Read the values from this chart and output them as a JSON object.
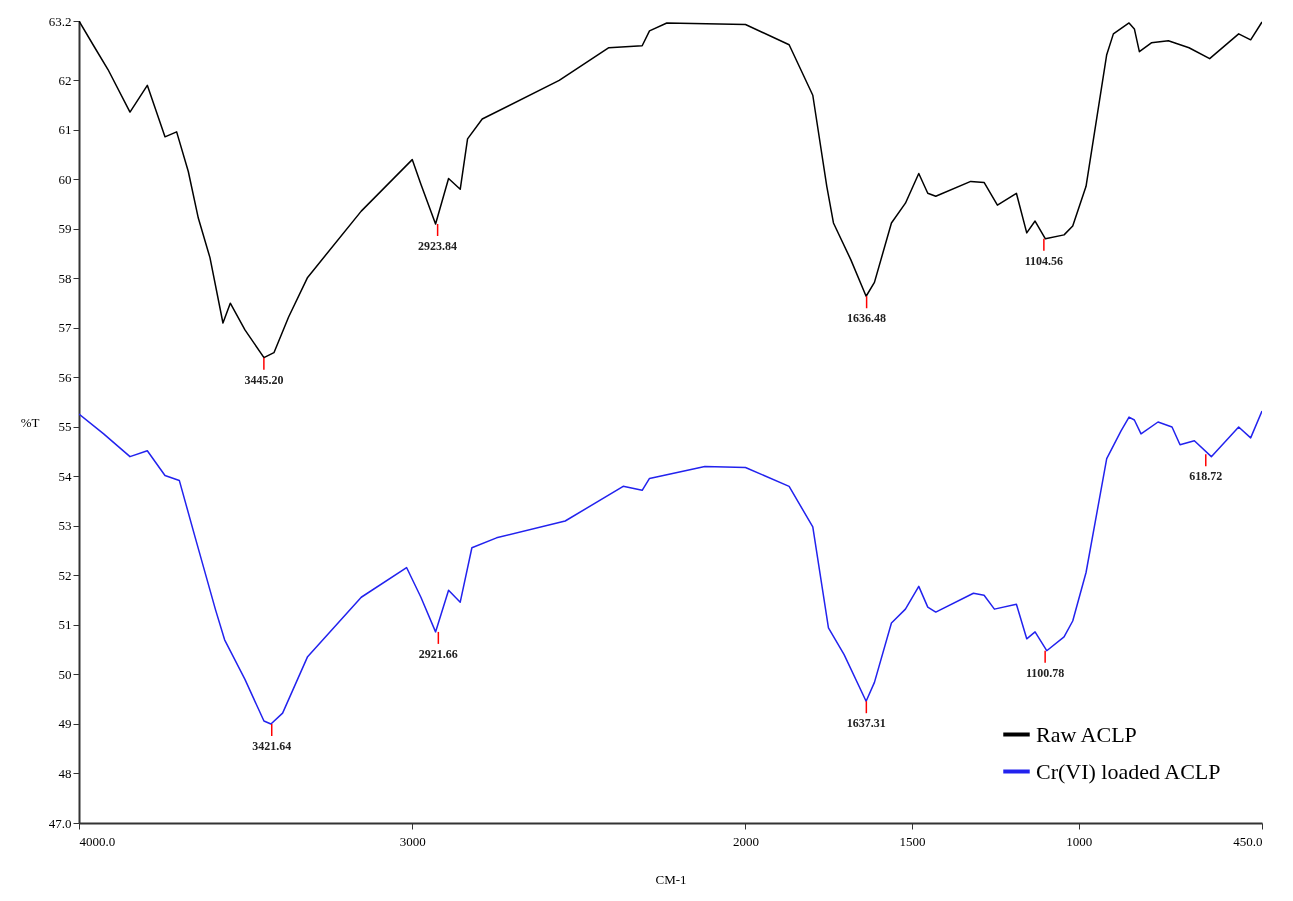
{
  "chart_data": {
    "type": "line",
    "xlabel": "CM-1",
    "ylabel": "%T",
    "xlim": [
      4000,
      450
    ],
    "xticks": [
      {
        "value": 4000,
        "label": "4000.0"
      },
      3000,
      2000,
      1500,
      1000,
      {
        "value": 450,
        "label": "450.0"
      }
    ],
    "ylim": [
      47,
      63.2
    ],
    "yticks": [
      {
        "value": 47,
        "label": "47.0"
      },
      48,
      49,
      50,
      51,
      52,
      53,
      54,
      55,
      56,
      57,
      58,
      59,
      60,
      61,
      62,
      63.2
    ],
    "legend": "bottom right",
    "grid": false,
    "line_style": "solid",
    "marker": "none",
    "series": [
      {
        "name": "Raw ACLP",
        "color": "#000000",
        "x": [
          4000,
          3956,
          3913,
          3847,
          3795,
          3742,
          3707,
          3672,
          3642,
          3607,
          3568,
          3546,
          3502,
          3445,
          3415,
          3371,
          3314,
          3153,
          3000,
          2974,
          2930,
          2891,
          2856,
          2834,
          2790,
          2559,
          2410,
          2310,
          2288,
          2236,
          2000,
          1869,
          1798,
          1756,
          1736,
          1684,
          1638,
          1613,
          1562,
          1520,
          1480,
          1453,
          1429,
          1324,
          1284,
          1244,
          1187,
          1156,
          1131,
          1100,
          1044,
          1018,
          978,
          916,
          896,
          849,
          833,
          818,
          782,
          731,
          669,
          607,
          520,
          484,
          450
        ],
        "values": [
          63.2,
          62.7,
          62.22,
          61.36,
          61.9,
          60.86,
          60.96,
          60.16,
          59.22,
          58.42,
          57.1,
          57.5,
          56.96,
          56.4,
          56.5,
          57.22,
          58.02,
          59.36,
          60.4,
          59.9,
          59.1,
          60.02,
          59.8,
          60.82,
          61.22,
          62.0,
          62.66,
          62.7,
          63.0,
          63.16,
          63.13,
          62.72,
          61.7,
          59.86,
          59.12,
          58.38,
          57.64,
          57.92,
          59.12,
          59.52,
          60.12,
          59.72,
          59.66,
          59.96,
          59.94,
          59.48,
          59.72,
          58.92,
          59.16,
          58.8,
          58.88,
          59.06,
          59.86,
          62.52,
          62.94,
          63.16,
          63.04,
          62.58,
          62.76,
          62.8,
          62.66,
          62.44,
          62.94,
          62.82,
          63.18
        ]
      },
      {
        "name": "Cr(VI) loaded ACLP",
        "color": "#2222ee",
        "x": [
          4000,
          3926,
          3847,
          3795,
          3742,
          3699,
          3651,
          3590,
          3563,
          3502,
          3445,
          3424,
          3389,
          3314,
          3153,
          3017,
          2974,
          2930,
          2891,
          2856,
          2821,
          2747,
          2541,
          2367,
          2310,
          2288,
          2122,
          2000,
          1869,
          1798,
          1751,
          1704,
          1638,
          1613,
          1562,
          1520,
          1480,
          1453,
          1429,
          1316,
          1284,
          1253,
          1187,
          1156,
          1131,
          1096,
          1044,
          1018,
          978,
          916,
          873,
          849,
          833,
          813,
          762,
          720,
          696,
          653,
          602,
          520,
          484,
          450
        ],
        "values": [
          55.26,
          54.86,
          54.4,
          54.52,
          54.02,
          53.92,
          52.76,
          51.3,
          50.7,
          49.9,
          49.06,
          49.0,
          49.22,
          50.36,
          51.56,
          52.16,
          51.56,
          50.86,
          51.7,
          51.46,
          52.56,
          52.76,
          53.1,
          53.8,
          53.72,
          53.96,
          54.2,
          54.18,
          53.8,
          52.98,
          50.94,
          50.4,
          49.46,
          49.84,
          51.04,
          51.32,
          51.78,
          51.36,
          51.26,
          51.64,
          51.6,
          51.32,
          51.42,
          50.72,
          50.86,
          50.48,
          50.76,
          51.08,
          52.06,
          54.36,
          54.92,
          55.2,
          55.14,
          54.86,
          55.1,
          55.0,
          54.64,
          54.72,
          54.4,
          55.0,
          54.78,
          55.32
        ]
      }
    ],
    "annotations": [
      {
        "text": "3445.20",
        "x": 3445.2,
        "y": 56.4
      },
      {
        "text": "2923.84",
        "x": 2923.84,
        "y": 59.1
      },
      {
        "text": "1636.48",
        "x": 1636.48,
        "y": 57.64
      },
      {
        "text": "1104.56",
        "x": 1104.56,
        "y": 58.8
      },
      {
        "text": "3421.64",
        "x": 3421.64,
        "y": 49.0
      },
      {
        "text": "2921.66",
        "x": 2921.66,
        "y": 50.86
      },
      {
        "text": "1637.31",
        "x": 1637.31,
        "y": 49.46
      },
      {
        "text": "1100.78",
        "x": 1100.78,
        "y": 50.48
      },
      {
        "text": "618.72",
        "x": 618.72,
        "y": 54.45
      }
    ]
  }
}
